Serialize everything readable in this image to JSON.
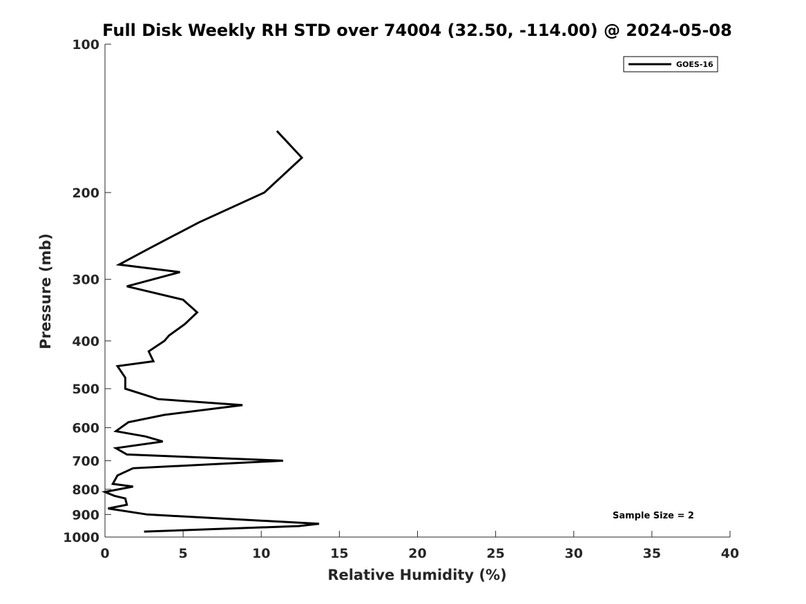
{
  "chart_data": {
    "type": "line",
    "title": "Full Disk Weekly RH STD over 74004 (32.50, -114.00) @ 2024-05-08",
    "xlabel": "Relative Humidity (%)",
    "ylabel": "Pressure (mb)",
    "xlim": [
      0,
      40
    ],
    "ylim": [
      100,
      1000
    ],
    "y_scale": "log",
    "y_inverted": true,
    "x_ticks": [
      "0",
      "5",
      "10",
      "15",
      "20",
      "25",
      "30",
      "35",
      "40"
    ],
    "y_ticks": [
      "100",
      "200",
      "300",
      "400",
      "500",
      "600",
      "700",
      "800",
      "900",
      "1000"
    ],
    "legend": {
      "position": "top-right",
      "entries": [
        "GOES-16"
      ]
    },
    "annotation": "Sample Size = 2",
    "grid": false,
    "series": [
      {
        "name": "GOES-16",
        "color": "#000000",
        "x": [
          11.0,
          12.6,
          10.2,
          6.0,
          2.8,
          0.9,
          4.8,
          1.4,
          5.0,
          5.9,
          5.1,
          4.1,
          3.8,
          2.8,
          3.1,
          0.8,
          1.3,
          1.3,
          3.4,
          8.8,
          3.8,
          1.5,
          0.7,
          2.6,
          3.7,
          0.7,
          1.4,
          11.4,
          1.8,
          0.8,
          0.5,
          1.8,
          0.0,
          0.6,
          1.3,
          1.4,
          0.2,
          2.7,
          13.7,
          12.4,
          2.5
        ],
        "y": [
          150,
          170,
          200,
          230,
          260,
          280,
          290,
          310,
          330,
          350,
          370,
          390,
          400,
          420,
          440,
          450,
          475,
          500,
          525,
          540,
          565,
          585,
          610,
          625,
          640,
          660,
          680,
          700,
          725,
          750,
          780,
          790,
          810,
          825,
          835,
          860,
          875,
          900,
          940,
          950,
          975
        ]
      }
    ]
  }
}
